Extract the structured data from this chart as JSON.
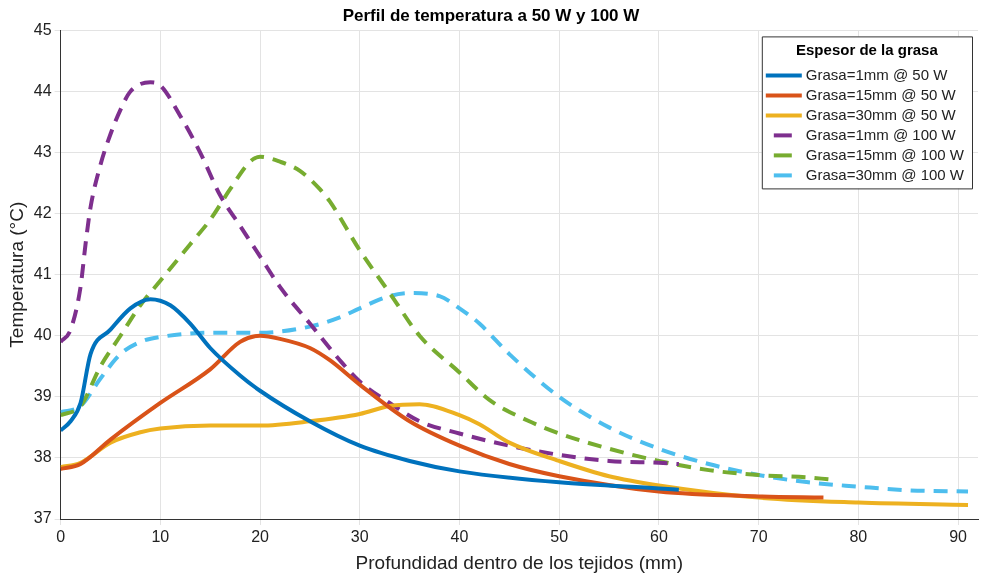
{
  "chart_data": {
    "type": "line",
    "title": "Perfil de temperatura a 50 W y 100 W",
    "xlabel": "Profundidad dentro de los tejidos (mm)",
    "ylabel": "Temperatura (°C)",
    "legend_title": "Espesor de la grasa",
    "legend": "top right",
    "grid": true,
    "marker": "none",
    "xlim": [
      0,
      92
    ],
    "xticks": [
      0,
      10,
      20,
      30,
      40,
      50,
      60,
      70,
      80,
      90
    ],
    "ylim": [
      37,
      45
    ],
    "yticks": [
      37,
      38,
      39,
      40,
      41,
      42,
      43,
      44,
      45
    ],
    "series": [
      {
        "name": "Grasa=1mm @ 50 W",
        "color": "#0072bd",
        "line_style": "solid",
        "x": [
          0,
          1,
          2,
          3,
          5,
          7,
          9,
          11,
          13,
          15,
          18,
          20,
          25,
          30,
          35,
          40,
          50,
          60,
          62
        ],
        "values": [
          38.45,
          38.6,
          38.9,
          39.7,
          40.1,
          40.45,
          40.6,
          40.5,
          40.2,
          39.8,
          39.35,
          39.1,
          38.6,
          38.2,
          37.95,
          37.78,
          37.6,
          37.5,
          37.48
        ]
      },
      {
        "name": "Grasa=15mm @ 50 W",
        "color": "#d95319",
        "line_style": "solid",
        "x": [
          0,
          2,
          5,
          10,
          15,
          18,
          20,
          22,
          25,
          27,
          30,
          35,
          40,
          45,
          50,
          60,
          70,
          76.5
        ],
        "values": [
          37.82,
          37.9,
          38.3,
          38.9,
          39.45,
          39.9,
          40,
          39.95,
          39.8,
          39.6,
          39.2,
          38.6,
          38.2,
          37.9,
          37.7,
          37.45,
          37.37,
          37.35
        ]
      },
      {
        "name": "Grasa=30mm @ 50 W",
        "color": "#edb120",
        "line_style": "solid",
        "x": [
          0,
          2,
          5,
          8,
          10,
          15,
          20,
          25,
          30,
          33,
          36,
          40,
          42,
          45,
          50,
          55,
          60,
          70,
          80,
          91
        ],
        "values": [
          37.85,
          37.92,
          38.25,
          38.42,
          38.48,
          38.53,
          38.53,
          38.6,
          38.72,
          38.85,
          38.88,
          38.7,
          38.55,
          38.25,
          37.95,
          37.7,
          37.55,
          37.35,
          37.27,
          37.23
        ]
      },
      {
        "name": "Grasa=1mm @ 100 W",
        "color": "#7e2f8e",
        "line_style": "dashed",
        "x": [
          0,
          1,
          2,
          2.5,
          3,
          4,
          5,
          6,
          7,
          9,
          10,
          12,
          14,
          16,
          18,
          20,
          22,
          25,
          28,
          30,
          33,
          36,
          40,
          45,
          50,
          55,
          60,
          62
        ],
        "values": [
          39.9,
          40.1,
          40.8,
          41.5,
          42.1,
          42.8,
          43.3,
          43.7,
          44,
          44.15,
          44.1,
          43.6,
          43,
          42.3,
          41.8,
          41.3,
          40.8,
          40.2,
          39.6,
          39.25,
          38.9,
          38.6,
          38.4,
          38.2,
          38.05,
          37.95,
          37.92,
          37.9
        ]
      },
      {
        "name": "Grasa=15mm @ 100 W",
        "color": "#77ac30",
        "line_style": "dashed",
        "x": [
          0,
          2,
          4,
          6,
          8,
          10,
          13,
          15,
          17,
          19,
          20,
          22,
          24,
          26,
          27,
          30,
          33,
          36,
          40,
          43,
          47,
          50,
          55,
          60,
          65,
          70,
          75,
          77
        ],
        "values": [
          38.7,
          38.85,
          39.5,
          40,
          40.5,
          40.9,
          41.5,
          41.9,
          42.4,
          42.85,
          42.93,
          42.85,
          42.7,
          42.4,
          42.2,
          41.4,
          40.7,
          40,
          39.4,
          38.95,
          38.6,
          38.4,
          38.15,
          37.95,
          37.8,
          37.72,
          37.68,
          37.65
        ]
      },
      {
        "name": "Grasa=30mm @ 100 W",
        "color": "#4dbeee",
        "line_style": "dashed",
        "x": [
          0,
          2,
          4,
          6,
          8,
          10,
          15,
          20,
          25,
          28,
          30,
          33,
          35,
          38,
          40,
          42,
          45,
          50,
          55,
          60,
          65,
          70,
          75,
          80,
          85,
          91
        ],
        "values": [
          38.75,
          38.85,
          39.3,
          39.7,
          39.9,
          39.98,
          40.05,
          40.05,
          40.15,
          40.3,
          40.45,
          40.65,
          40.7,
          40.65,
          40.45,
          40.2,
          39.7,
          39,
          38.5,
          38.15,
          37.9,
          37.72,
          37.6,
          37.53,
          37.47,
          37.45
        ]
      }
    ]
  }
}
